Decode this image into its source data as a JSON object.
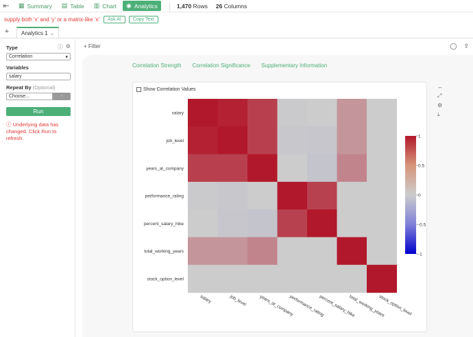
{
  "nav": {
    "back_icon": "back-icon",
    "tabs": [
      {
        "label": "Summary",
        "icon": "summary-icon"
      },
      {
        "label": "Table",
        "icon": "table-icon"
      },
      {
        "label": "Chart",
        "icon": "chart-icon"
      },
      {
        "label": "Analytics",
        "icon": "analytics-icon"
      }
    ],
    "rows_count": "1,470",
    "rows_label": "Rows",
    "cols_count": "26",
    "cols_label": "Columns"
  },
  "error_bar": {
    "message": "supply both 'x' and 'y' or a matrix-like 'x'",
    "ask_ai": "Ask AI",
    "copy_text": "Copy Text"
  },
  "analytics_tab": {
    "label": "Analytics 1"
  },
  "sidebar": {
    "type_label": "Type",
    "type_value": "Correlation",
    "variables_label": "Variables",
    "variables_value": "salary",
    "repeat_label": "Repeat By",
    "repeat_optional": "(Optional)",
    "repeat_value": "Choose...",
    "repeat_dash": "-",
    "run_label": "Run",
    "warning": "Underlying data has changed. Click Run to refresh."
  },
  "filter": {
    "label": "Filter"
  },
  "subtabs": [
    "Correlation Strength",
    "Correlation Significance",
    "Supplementary Information"
  ],
  "chart_options": {
    "show_values_label": "Show Correlation Values"
  },
  "colors": {
    "accent": "#4caf78",
    "error": "#e53935",
    "high": "#b2182b",
    "mid": "#cccccc",
    "low": "#0000cc"
  },
  "chart_data": {
    "type": "heatmap",
    "variables": [
      "salary",
      "job_level",
      "years_at_company",
      "performance_rating",
      "percent_salary_hike",
      "total_working_years",
      "stock_option_level"
    ],
    "matrix": [
      [
        1.0,
        0.95,
        0.78,
        -0.01,
        0.0,
        0.3,
        0.0
      ],
      [
        0.95,
        1.0,
        0.78,
        -0.02,
        -0.03,
        0.3,
        0.0
      ],
      [
        0.78,
        0.78,
        1.0,
        0.0,
        -0.04,
        0.4,
        0.0
      ],
      [
        -0.01,
        -0.02,
        0.0,
        1.0,
        0.77,
        0.0,
        0.0
      ],
      [
        0.0,
        -0.03,
        -0.04,
        0.77,
        1.0,
        0.0,
        0.0
      ],
      [
        0.3,
        0.3,
        0.4,
        0.0,
        0.0,
        1.0,
        0.0
      ],
      [
        0.0,
        0.0,
        0.0,
        0.0,
        0.0,
        0.0,
        1.0
      ]
    ],
    "colorbar": {
      "ticks": [
        1,
        0.5,
        0,
        -0.5,
        -1
      ],
      "tick_labels": [
        "1",
        "0.5",
        "0",
        "-0.5",
        "-1"
      ],
      "range": [
        -1,
        1
      ]
    }
  }
}
